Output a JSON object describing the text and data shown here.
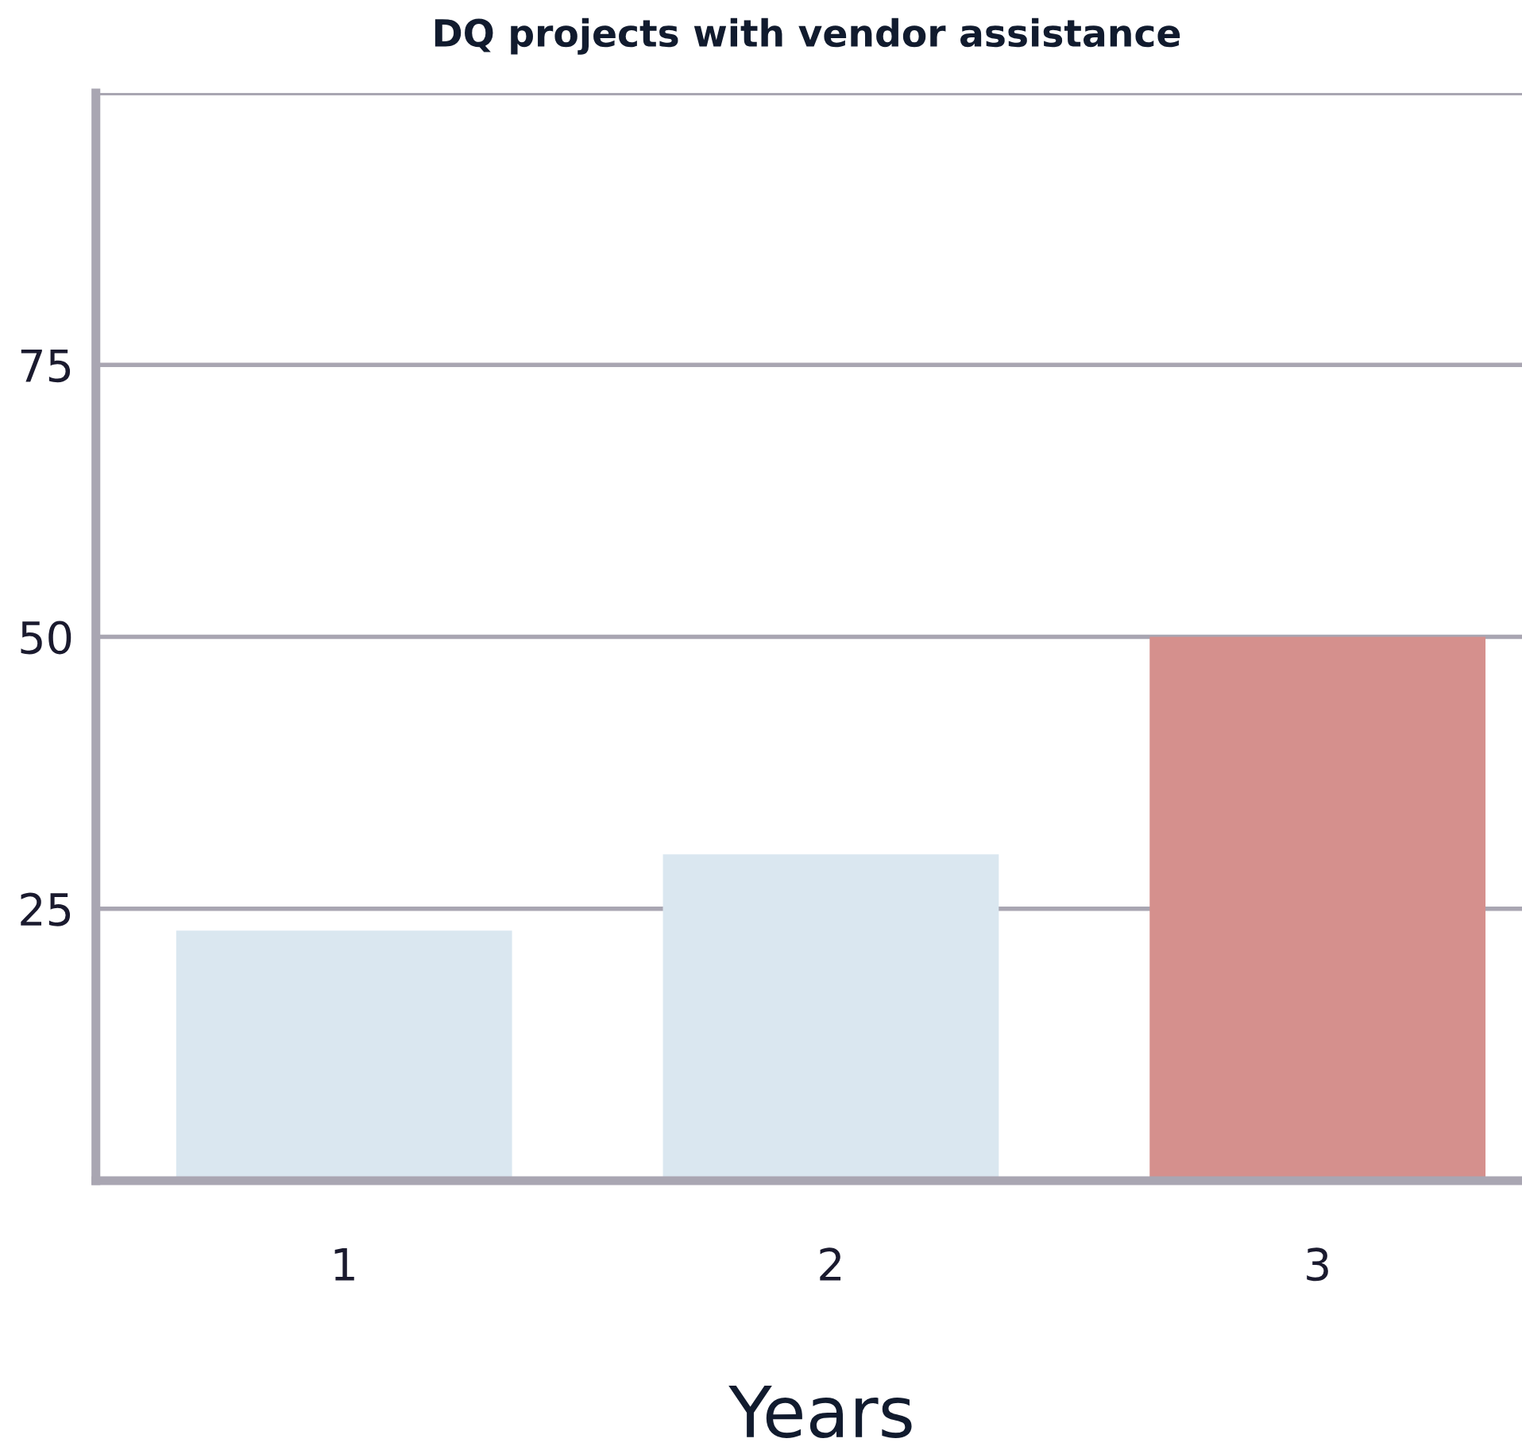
{
  "chart_data": {
    "type": "bar",
    "title": "DQ projects with vendor assistance",
    "xlabel": "Years",
    "categories": [
      "1",
      "2",
      "3"
    ],
    "values": [
      23,
      30,
      50
    ],
    "colors": [
      "#dae7f0",
      "#dae7f0",
      "#d5908d"
    ],
    "ylim": [
      0,
      100
    ],
    "yticks": [
      {
        "value": 0,
        "label": null
      },
      25,
      50,
      75,
      {
        "value": 100,
        "label": null
      }
    ],
    "grid": "y"
  }
}
